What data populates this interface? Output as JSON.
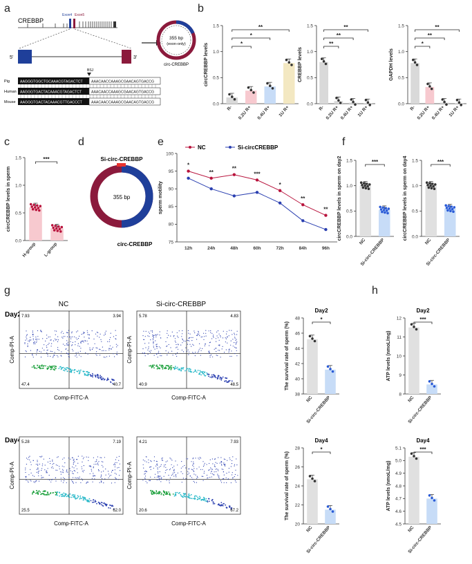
{
  "panels": [
    "a",
    "b",
    "c",
    "d",
    "e",
    "f",
    "g",
    "h"
  ],
  "panel_a": {
    "gene": "CREBBP",
    "exon4": "Exon4",
    "exon5": "Exon5",
    "five": "5'",
    "three": "3'",
    "bsj": "BSJ",
    "circle_size": "355 bp",
    "circle_sub": "(exon-only)",
    "circle_name": "circ-CREBBP",
    "species": [
      "Pig",
      "Human",
      "Mouse"
    ],
    "seq_left": [
      "AAGGGTGGCTGCAAACGTAGACTCT",
      "AAGGGTGACTACAAACGTAGACTCT",
      "AAGGGTGACTACAAACGTTGACCCT"
    ],
    "seq_right": [
      "AAACAACCAAAGCGAACAGTGACCG",
      "AAACAACCAAAGCGAACAGTGACCG",
      "AAACAACCAAAGCGAACAGTGACCG"
    ]
  },
  "panel_d": {
    "top_label": "Si-circ-CREBBP",
    "center": "355 bp",
    "bottom_label": "circ-CREBBP"
  },
  "panel_g": {
    "col1": "NC",
    "col2": "Si-circ-CREBBP",
    "row1": "Day2",
    "row2": "Day4",
    "xaxis": "Comp-FITC-A",
    "yaxis": "Comp-PI-A",
    "quads": [
      [
        "7.93",
        "3.94",
        "47.4",
        "40.7"
      ],
      [
        "5.78",
        "4.83",
        "40.9",
        "48.5"
      ],
      [
        "5.28",
        "7.19",
        "25.5",
        "62.0"
      ],
      [
        "4.21",
        "7.93",
        "20.6",
        "67.2"
      ]
    ]
  },
  "chart_data": [
    {
      "id": "b1",
      "type": "bar",
      "ylabel": "circCREBBP levels",
      "categories": [
        "R-",
        "0.2U R+",
        "0.4U R+",
        "1U R+"
      ],
      "values": [
        0.12,
        0.25,
        0.33,
        0.78
      ],
      "ylim": [
        0,
        1.5
      ],
      "yticks": [
        "0.0",
        "0.5",
        "1.0",
        "1.5"
      ],
      "sig": [
        "*",
        "*",
        "**"
      ]
    },
    {
      "id": "b2",
      "type": "bar",
      "ylabel": "CREBBP levels",
      "categories": [
        "R-",
        "0.2U R+",
        "0.4U R+",
        "1U R+"
      ],
      "values": [
        0.8,
        0.05,
        0.02,
        0.01
      ],
      "ylim": [
        0,
        1.5
      ],
      "yticks": [
        "0.0",
        "0.5",
        "1.0",
        "1.5"
      ],
      "sig": [
        "**",
        "**",
        "**"
      ]
    },
    {
      "id": "b3",
      "type": "bar",
      "ylabel": "GAPDH levels",
      "categories": [
        "R-",
        "0.2U R+",
        "0.4U R+",
        "1U R+"
      ],
      "values": [
        0.78,
        0.32,
        0.02,
        0.01
      ],
      "ylim": [
        0,
        1.5
      ],
      "yticks": [
        "0.0",
        "0.5",
        "1.0",
        "1.5"
      ],
      "sig": [
        "*",
        "**",
        "**"
      ]
    },
    {
      "id": "c",
      "type": "bar",
      "ylabel": "circCREBBP levels in sperm",
      "categories": [
        "H-group",
        "L-group"
      ],
      "values": [
        0.6,
        0.22
      ],
      "ylim": [
        0,
        1.5
      ],
      "yticks": [
        "0.0",
        "0.5",
        "1.0",
        "1.5"
      ],
      "sig": [
        "***"
      ]
    },
    {
      "id": "e",
      "type": "line",
      "ylabel": "sperm motility",
      "x": [
        "12h",
        "24h",
        "48h",
        "60h",
        "72h",
        "84h",
        "96h"
      ],
      "series": [
        {
          "name": "NC",
          "values": [
            95,
            93,
            94,
            92.5,
            89.5,
            85.5,
            82.5
          ]
        },
        {
          "name": "Si-circCREBBP",
          "values": [
            93,
            90,
            88,
            89,
            86,
            81,
            78.5
          ]
        }
      ],
      "ylim": [
        75,
        100
      ],
      "yticks": [
        "75",
        "80",
        "85",
        "90",
        "95",
        "100"
      ],
      "sig": [
        "*",
        "**",
        "**",
        "***",
        "*",
        "**",
        "**"
      ]
    },
    {
      "id": "f1",
      "type": "bar",
      "ylabel": "circCREBBP levels in sperm on day2",
      "categories": [
        "NC",
        "Si-circ-CREBBP"
      ],
      "values": [
        1.0,
        0.52
      ],
      "ylim": [
        0,
        1.5
      ],
      "yticks": [
        "0.0",
        "0.5",
        "1.0",
        "1.5"
      ],
      "sig": [
        "***"
      ]
    },
    {
      "id": "f2",
      "type": "bar",
      "ylabel": "circCREBBP levels in sperm on day4",
      "categories": [
        "NC",
        "Si-circ-CREBBP"
      ],
      "values": [
        1.0,
        0.55
      ],
      "ylim": [
        0,
        1.5
      ],
      "yticks": [
        "0.0",
        "0.5",
        "1.0",
        "1.5"
      ],
      "sig": [
        "***"
      ]
    },
    {
      "id": "gd2",
      "type": "bar",
      "title": "Day2",
      "ylabel": "The survival rate of sperm (%)",
      "categories": [
        "NC",
        "Si-circ-CREBBP"
      ],
      "values": [
        45.2,
        41.2
      ],
      "ylim": [
        38,
        48
      ],
      "yticks": [
        "38",
        "40",
        "42",
        "44",
        "46",
        "48"
      ],
      "sig": [
        "*"
      ]
    },
    {
      "id": "gd4",
      "type": "bar",
      "title": "Day4",
      "ylabel": "The survival rate of sperm (%)",
      "categories": [
        "NC",
        "Si-circ-CREBBP"
      ],
      "values": [
        24.7,
        21.5
      ],
      "ylim": [
        20,
        28
      ],
      "yticks": [
        "20",
        "22",
        "24",
        "26",
        "28"
      ],
      "sig": [
        "*"
      ]
    },
    {
      "id": "hd2",
      "type": "bar",
      "title": "Day2",
      "ylabel": "ATP levels (nmoL/mg)",
      "categories": [
        "NC",
        "Si-circ-CREBBP"
      ],
      "values": [
        11.5,
        8.5
      ],
      "ylim": [
        8,
        12
      ],
      "yticks": [
        "8",
        "9",
        "10",
        "11",
        "12"
      ],
      "sig": [
        "***"
      ]
    },
    {
      "id": "hd4",
      "type": "bar",
      "title": "Day4",
      "ylabel": "ATP levels (nmoL/mg)",
      "categories": [
        "NC",
        "Si-circ-CREBBP"
      ],
      "values": [
        5.03,
        4.7
      ],
      "ylim": [
        4.5,
        5.1
      ],
      "yticks": [
        "4.5",
        "4.6",
        "4.7",
        "4.8",
        "4.9",
        "5.0",
        "5.1"
      ],
      "sig": [
        "***"
      ]
    }
  ]
}
